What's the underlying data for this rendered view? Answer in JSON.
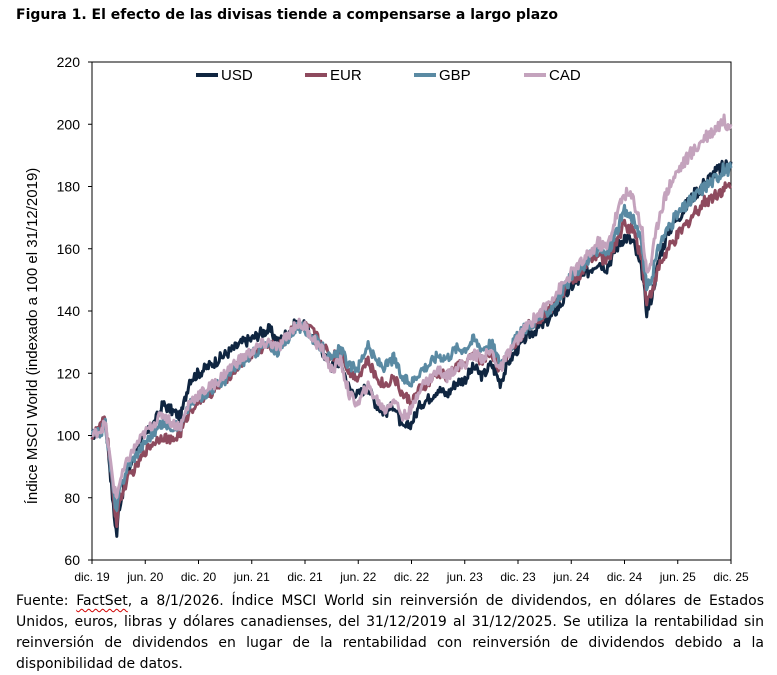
{
  "figure": {
    "title": "Figura 1. El efecto de las divisas tiende a compensarse a largo plazo"
  },
  "source": {
    "brand": "FactSet",
    "text": ", a 8/1/2026. Índice MSCI World sin reinversión de dividendos, en dólares de Estados Unidos, euros, libras y dólares canadienses, del 31/12/2019 al 31/12/2025. Se utiliza la rentabilidad sin reinversión de dividendos en lugar de la rentabilidad con reinversión de dividendos debido a la disponibilidad de datos.",
    "prefix": "Fuente: "
  },
  "colors": {
    "USD": "#0f2540",
    "EUR": "#8e4a5e",
    "GBP": "#5a8aa3",
    "CAD": "#c4a3bd"
  },
  "chart_data": {
    "type": "line",
    "title": "",
    "xlabel": "",
    "ylabel": "Índice MSCI World (indexado a 100 el 31/12/2019)",
    "ylim": [
      60,
      220
    ],
    "yticks": [
      60,
      80,
      100,
      120,
      140,
      160,
      180,
      200,
      220
    ],
    "xlim": [
      0,
      72
    ],
    "xticks": [
      {
        "label": "dic. 19",
        "x": 0
      },
      {
        "label": "jun. 20",
        "x": 6
      },
      {
        "label": "dic. 20",
        "x": 12
      },
      {
        "label": "jun. 21",
        "x": 18
      },
      {
        "label": "dic. 21",
        "x": 24
      },
      {
        "label": "jun. 22",
        "x": 30
      },
      {
        "label": "dic. 22",
        "x": 36
      },
      {
        "label": "jun. 23",
        "x": 42
      },
      {
        "label": "dic. 23",
        "x": 48
      },
      {
        "label": "jun. 24",
        "x": 54
      },
      {
        "label": "dic. 24",
        "x": 60
      },
      {
        "label": "jun. 25",
        "x": 66
      },
      {
        "label": "dic. 25",
        "x": 72
      }
    ],
    "legend_position": "top",
    "series": [
      {
        "name": "USD",
        "points": [
          [
            0,
            100
          ],
          [
            1,
            102
          ],
          [
            1.5,
            105
          ],
          [
            2,
            90
          ],
          [
            2.5,
            74
          ],
          [
            2.8,
            68
          ],
          [
            3,
            76
          ],
          [
            4,
            88
          ],
          [
            5,
            95
          ],
          [
            6,
            100
          ],
          [
            7,
            104
          ],
          [
            8,
            110
          ],
          [
            9,
            108
          ],
          [
            10,
            106
          ],
          [
            11,
            118
          ],
          [
            12,
            120
          ],
          [
            13,
            122
          ],
          [
            14,
            124
          ],
          [
            15,
            126
          ],
          [
            16,
            128
          ],
          [
            17,
            130
          ],
          [
            18,
            131
          ],
          [
            19,
            133
          ],
          [
            20,
            134
          ],
          [
            21,
            130
          ],
          [
            22,
            133
          ],
          [
            23,
            136
          ],
          [
            24,
            135
          ],
          [
            25,
            131
          ],
          [
            26,
            127
          ],
          [
            27,
            122
          ],
          [
            28,
            124
          ],
          [
            29,
            115
          ],
          [
            30,
            113
          ],
          [
            31,
            116
          ],
          [
            32,
            110
          ],
          [
            33,
            107
          ],
          [
            34,
            110
          ],
          [
            35,
            102
          ],
          [
            36,
            104
          ],
          [
            37,
            110
          ],
          [
            38,
            112
          ],
          [
            39,
            115
          ],
          [
            40,
            113
          ],
          [
            41,
            117
          ],
          [
            42,
            118
          ],
          [
            43,
            122
          ],
          [
            44,
            119
          ],
          [
            45,
            123
          ],
          [
            46,
            117
          ],
          [
            47,
            124
          ],
          [
            48,
            128
          ],
          [
            49,
            132
          ],
          [
            50,
            134
          ],
          [
            51,
            136
          ],
          [
            52,
            139
          ],
          [
            53,
            143
          ],
          [
            54,
            148
          ],
          [
            55,
            150
          ],
          [
            56,
            153
          ],
          [
            57,
            156
          ],
          [
            58,
            154
          ],
          [
            59,
            160
          ],
          [
            60,
            164
          ],
          [
            61,
            162
          ],
          [
            62,
            152
          ],
          [
            62.5,
            140
          ],
          [
            63,
            144
          ],
          [
            64,
            158
          ],
          [
            65,
            166
          ],
          [
            66,
            170
          ],
          [
            67,
            174
          ],
          [
            68,
            178
          ],
          [
            69,
            181
          ],
          [
            70,
            184
          ],
          [
            71,
            186
          ],
          [
            72,
            188
          ]
        ]
      },
      {
        "name": "EUR",
        "points": [
          [
            0,
            100
          ],
          [
            1,
            103
          ],
          [
            1.5,
            106
          ],
          [
            2,
            92
          ],
          [
            2.5,
            77
          ],
          [
            2.8,
            72
          ],
          [
            3,
            78
          ],
          [
            4,
            86
          ],
          [
            5,
            90
          ],
          [
            6,
            95
          ],
          [
            7,
            98
          ],
          [
            8,
            100
          ],
          [
            9,
            98
          ],
          [
            10,
            101
          ],
          [
            11,
            108
          ],
          [
            12,
            111
          ],
          [
            13,
            113
          ],
          [
            14,
            115
          ],
          [
            15,
            118
          ],
          [
            16,
            121
          ],
          [
            17,
            124
          ],
          [
            18,
            126
          ],
          [
            19,
            128
          ],
          [
            20,
            129
          ],
          [
            21,
            128
          ],
          [
            22,
            132
          ],
          [
            23,
            136
          ],
          [
            24,
            135
          ],
          [
            25,
            133
          ],
          [
            26,
            129
          ],
          [
            27,
            125
          ],
          [
            28,
            128
          ],
          [
            29,
            120
          ],
          [
            30,
            119
          ],
          [
            31,
            124
          ],
          [
            32,
            119
          ],
          [
            33,
            116
          ],
          [
            34,
            119
          ],
          [
            35,
            113
          ],
          [
            36,
            111
          ],
          [
            37,
            115
          ],
          [
            38,
            117
          ],
          [
            39,
            120
          ],
          [
            40,
            119
          ],
          [
            41,
            122
          ],
          [
            42,
            123
          ],
          [
            43,
            126
          ],
          [
            44,
            124
          ],
          [
            45,
            127
          ],
          [
            46,
            121
          ],
          [
            47,
            127
          ],
          [
            48,
            131
          ],
          [
            49,
            135
          ],
          [
            50,
            137
          ],
          [
            51,
            139
          ],
          [
            52,
            142
          ],
          [
            53,
            146
          ],
          [
            54,
            150
          ],
          [
            55,
            152
          ],
          [
            56,
            156
          ],
          [
            57,
            158
          ],
          [
            58,
            156
          ],
          [
            59,
            162
          ],
          [
            60,
            168
          ],
          [
            61,
            166
          ],
          [
            62,
            156
          ],
          [
            62.5,
            143
          ],
          [
            63,
            146
          ],
          [
            64,
            155
          ],
          [
            65,
            160
          ],
          [
            66,
            164
          ],
          [
            67,
            168
          ],
          [
            68,
            172
          ],
          [
            69,
            175
          ],
          [
            70,
            177
          ],
          [
            71,
            179
          ],
          [
            72,
            180
          ]
        ]
      },
      {
        "name": "GBP",
        "points": [
          [
            0,
            100
          ],
          [
            1,
            101
          ],
          [
            1.5,
            104
          ],
          [
            2,
            92
          ],
          [
            2.5,
            80
          ],
          [
            2.8,
            75
          ],
          [
            3,
            81
          ],
          [
            4,
            90
          ],
          [
            5,
            94
          ],
          [
            6,
            98
          ],
          [
            7,
            101
          ],
          [
            8,
            104
          ],
          [
            9,
            103
          ],
          [
            10,
            103
          ],
          [
            11,
            110
          ],
          [
            12,
            112
          ],
          [
            13,
            114
          ],
          [
            14,
            116
          ],
          [
            15,
            118
          ],
          [
            16,
            121
          ],
          [
            17,
            124
          ],
          [
            18,
            126
          ],
          [
            19,
            128
          ],
          [
            20,
            129
          ],
          [
            21,
            127
          ],
          [
            22,
            131
          ],
          [
            23,
            135
          ],
          [
            24,
            134
          ],
          [
            25,
            131
          ],
          [
            26,
            128
          ],
          [
            27,
            124
          ],
          [
            28,
            128
          ],
          [
            29,
            122
          ],
          [
            30,
            122
          ],
          [
            31,
            129
          ],
          [
            32,
            124
          ],
          [
            33,
            122
          ],
          [
            34,
            125
          ],
          [
            35,
            118
          ],
          [
            36,
            117
          ],
          [
            37,
            121
          ],
          [
            38,
            123
          ],
          [
            39,
            126
          ],
          [
            40,
            125
          ],
          [
            41,
            128
          ],
          [
            42,
            128
          ],
          [
            43,
            131
          ],
          [
            44,
            128
          ],
          [
            45,
            130
          ],
          [
            46,
            123
          ],
          [
            47,
            128
          ],
          [
            48,
            132
          ],
          [
            49,
            135
          ],
          [
            50,
            137
          ],
          [
            51,
            139
          ],
          [
            52,
            142
          ],
          [
            53,
            146
          ],
          [
            54,
            151
          ],
          [
            55,
            153
          ],
          [
            56,
            157
          ],
          [
            57,
            160
          ],
          [
            58,
            158
          ],
          [
            59,
            165
          ],
          [
            60,
            172
          ],
          [
            61,
            170
          ],
          [
            62,
            160
          ],
          [
            62.5,
            147
          ],
          [
            63,
            150
          ],
          [
            64,
            162
          ],
          [
            65,
            167
          ],
          [
            66,
            171
          ],
          [
            67,
            174
          ],
          [
            68,
            177
          ],
          [
            69,
            180
          ],
          [
            70,
            182
          ],
          [
            71,
            185
          ],
          [
            72,
            186
          ]
        ]
      },
      {
        "name": "CAD",
        "points": [
          [
            0,
            100
          ],
          [
            1,
            102
          ],
          [
            1.5,
            104
          ],
          [
            2,
            93
          ],
          [
            2.5,
            83
          ],
          [
            2.8,
            80
          ],
          [
            3,
            84
          ],
          [
            4,
            92
          ],
          [
            5,
            97
          ],
          [
            6,
            101
          ],
          [
            7,
            104
          ],
          [
            8,
            107
          ],
          [
            9,
            104
          ],
          [
            10,
            103
          ],
          [
            11,
            111
          ],
          [
            12,
            113
          ],
          [
            13,
            115
          ],
          [
            14,
            117
          ],
          [
            15,
            120
          ],
          [
            16,
            123
          ],
          [
            17,
            125
          ],
          [
            18,
            127
          ],
          [
            19,
            129
          ],
          [
            20,
            130
          ],
          [
            21,
            128
          ],
          [
            22,
            132
          ],
          [
            23,
            136
          ],
          [
            24,
            135
          ],
          [
            25,
            131
          ],
          [
            26,
            127
          ],
          [
            27,
            121
          ],
          [
            28,
            124
          ],
          [
            29,
            113
          ],
          [
            30,
            110
          ],
          [
            31,
            116
          ],
          [
            32,
            112
          ],
          [
            33,
            108
          ],
          [
            34,
            112
          ],
          [
            35,
            106
          ],
          [
            36,
            108
          ],
          [
            37,
            116
          ],
          [
            38,
            118
          ],
          [
            39,
            121
          ],
          [
            40,
            119
          ],
          [
            41,
            122
          ],
          [
            42,
            123
          ],
          [
            43,
            126
          ],
          [
            44,
            125
          ],
          [
            45,
            127
          ],
          [
            46,
            121
          ],
          [
            47,
            127
          ],
          [
            48,
            131
          ],
          [
            49,
            135
          ],
          [
            50,
            138
          ],
          [
            51,
            141
          ],
          [
            52,
            145
          ],
          [
            53,
            148
          ],
          [
            54,
            152
          ],
          [
            55,
            155
          ],
          [
            56,
            158
          ],
          [
            57,
            162
          ],
          [
            58,
            160
          ],
          [
            59,
            170
          ],
          [
            60,
            178
          ],
          [
            61,
            176
          ],
          [
            62,
            166
          ],
          [
            62.5,
            152
          ],
          [
            63,
            156
          ],
          [
            64,
            172
          ],
          [
            65,
            180
          ],
          [
            66,
            185
          ],
          [
            67,
            189
          ],
          [
            68,
            192
          ],
          [
            69,
            196
          ],
          [
            70,
            198
          ],
          [
            71,
            201
          ],
          [
            72,
            200
          ]
        ]
      }
    ]
  }
}
